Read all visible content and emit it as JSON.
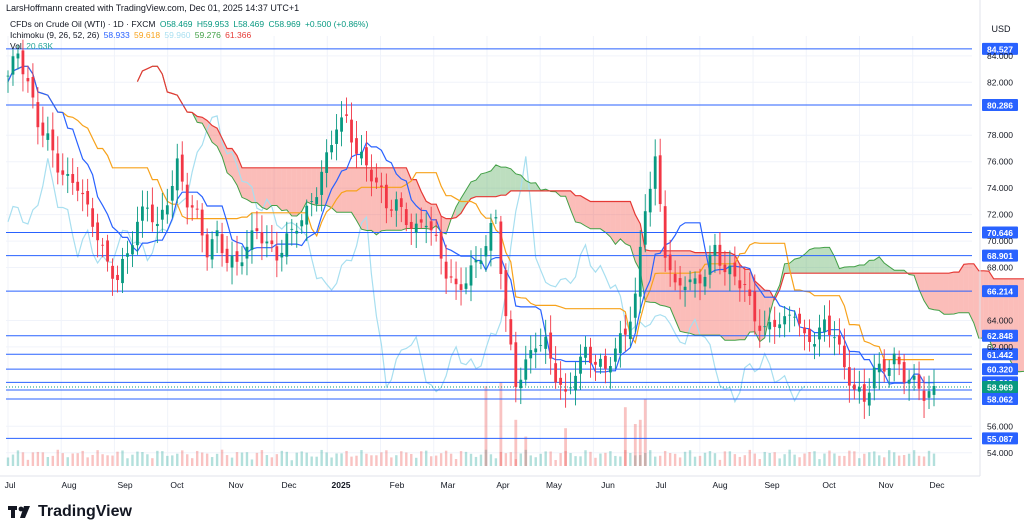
{
  "header": {
    "created_by": "LarsHoffmann created with TradingView.com, Dec 01, 2025 14:37 UTC+1"
  },
  "legend": {
    "symbol": "CFDs on Crude Oil (WTI) · 1D · FXCM",
    "ohlc": {
      "o": "O58.469",
      "h": "H59.953",
      "l": "L58.469",
      "c": "C58.969",
      "chg": "+0.500 (+0.86%)"
    },
    "ichimoku_label": "Ichimoku (9, 26, 52, 26)",
    "ichimoku_values": [
      "58.933",
      "59.618",
      "59.960",
      "59.276",
      "61.366"
    ],
    "vol_label": "Vol",
    "vol_value": "20.63K"
  },
  "footer": {
    "brand": "TradingView"
  },
  "chart_data": {
    "type": "candlestick",
    "currency": "USD",
    "x_labels": [
      "Jul",
      "Aug",
      "Sep",
      "Oct",
      "Nov",
      "Dec",
      "2025",
      "Feb",
      "Mar",
      "Apr",
      "May",
      "Jun",
      "Jul",
      "Aug",
      "Sep",
      "Oct",
      "Nov",
      "Dec"
    ],
    "y_ticks": [
      "84.000",
      "82.000",
      "78.000",
      "76.000",
      "74.000",
      "72.000",
      "70.000",
      "68.000",
      "64.000",
      "62.000",
      "56.000",
      "54.000"
    ],
    "ylim": [
      53.0,
      85.5
    ],
    "horizontal_levels": [
      {
        "label": "84.527",
        "value": 84.527
      },
      {
        "label": "80.286",
        "value": 80.286
      },
      {
        "label": "70.646",
        "value": 70.646
      },
      {
        "label": "68.901",
        "value": 68.901
      },
      {
        "label": "66.214",
        "value": 66.214
      },
      {
        "label": "62.848",
        "value": 62.848
      },
      {
        "label": "61.442",
        "value": 61.442
      },
      {
        "label": "60.320",
        "value": 60.32
      },
      {
        "label": "59.319",
        "value": 59.319
      },
      {
        "label": "58.741",
        "value": 58.741
      },
      {
        "label": "58.062",
        "value": 58.062
      },
      {
        "label": "55.087",
        "value": 55.087
      }
    ],
    "last_price": {
      "label": "58.969",
      "value": 58.969
    },
    "price_path": [
      [
        0,
        82.5
      ],
      [
        2,
        84.0
      ],
      [
        4,
        81.5
      ],
      [
        6,
        79.0
      ],
      [
        8,
        78.0
      ],
      [
        10,
        76.0
      ],
      [
        12,
        74.5
      ],
      [
        14,
        74.0
      ],
      [
        16,
        72.0
      ],
      [
        18,
        70.5
      ],
      [
        20,
        68.5
      ],
      [
        22,
        67.5
      ],
      [
        24,
        69.0
      ],
      [
        26,
        71.0
      ],
      [
        28,
        72.5
      ],
      [
        30,
        71.0
      ],
      [
        32,
        73.5
      ],
      [
        34,
        76.0
      ],
      [
        36,
        73.0
      ],
      [
        38,
        71.5
      ],
      [
        40,
        69.0
      ],
      [
        42,
        70.5
      ],
      [
        44,
        69.0
      ],
      [
        46,
        68.5
      ],
      [
        48,
        69.5
      ],
      [
        50,
        70.5
      ],
      [
        52,
        69.5
      ],
      [
        54,
        69.0
      ],
      [
        56,
        70.5
      ],
      [
        58,
        71.5
      ],
      [
        60,
        72.0
      ],
      [
        62,
        73.5
      ],
      [
        64,
        76.0
      ],
      [
        66,
        79.0
      ],
      [
        68,
        79.5
      ],
      [
        70,
        77.0
      ],
      [
        72,
        75.5
      ],
      [
        74,
        74.0
      ],
      [
        76,
        72.5
      ],
      [
        78,
        73.0
      ],
      [
        80,
        72.0
      ],
      [
        82,
        71.0
      ],
      [
        84,
        71.5
      ],
      [
        86,
        69.5
      ],
      [
        88,
        67.5
      ],
      [
        90,
        66.5
      ],
      [
        92,
        67.5
      ],
      [
        94,
        68.5
      ],
      [
        96,
        69.5
      ],
      [
        98,
        71.5
      ],
      [
        100,
        64.0
      ],
      [
        102,
        59.5
      ],
      [
        104,
        61.0
      ],
      [
        106,
        62.5
      ],
      [
        108,
        62.0
      ],
      [
        110,
        59.5
      ],
      [
        112,
        58.0
      ],
      [
        114,
        60.5
      ],
      [
        116,
        62.0
      ],
      [
        118,
        61.0
      ],
      [
        120,
        60.0
      ],
      [
        122,
        61.5
      ],
      [
        124,
        63.0
      ],
      [
        126,
        66.0
      ],
      [
        128,
        73.0
      ],
      [
        130,
        76.0
      ],
      [
        132,
        69.0
      ],
      [
        134,
        66.0
      ],
      [
        136,
        67.0
      ],
      [
        138,
        67.0
      ],
      [
        140,
        68.0
      ],
      [
        142,
        69.5
      ],
      [
        144,
        67.5
      ],
      [
        146,
        67.0
      ],
      [
        148,
        66.5
      ],
      [
        150,
        64.5
      ],
      [
        152,
        63.5
      ],
      [
        154,
        64.0
      ],
      [
        156,
        63.5
      ],
      [
        158,
        64.5
      ],
      [
        160,
        62.5
      ],
      [
        162,
        63.0
      ],
      [
        164,
        64.0
      ],
      [
        166,
        63.0
      ],
      [
        168,
        60.0
      ],
      [
        170,
        58.5
      ],
      [
        172,
        58.0
      ],
      [
        174,
        60.5
      ],
      [
        176,
        60.8
      ],
      [
        178,
        61.0
      ],
      [
        180,
        59.5
      ],
      [
        182,
        59.0
      ],
      [
        184,
        58.5
      ],
      [
        186,
        58.9
      ]
    ],
    "volume_bars": [
      [
        96,
        0.95
      ],
      [
        99,
        1.0
      ],
      [
        102,
        0.55
      ],
      [
        104,
        0.35
      ],
      [
        112,
        0.45
      ],
      [
        124,
        0.7
      ],
      [
        126,
        0.5
      ],
      [
        127,
        0.55
      ],
      [
        128,
        0.8
      ]
    ],
    "x_domain": [
      0,
      186
    ]
  }
}
